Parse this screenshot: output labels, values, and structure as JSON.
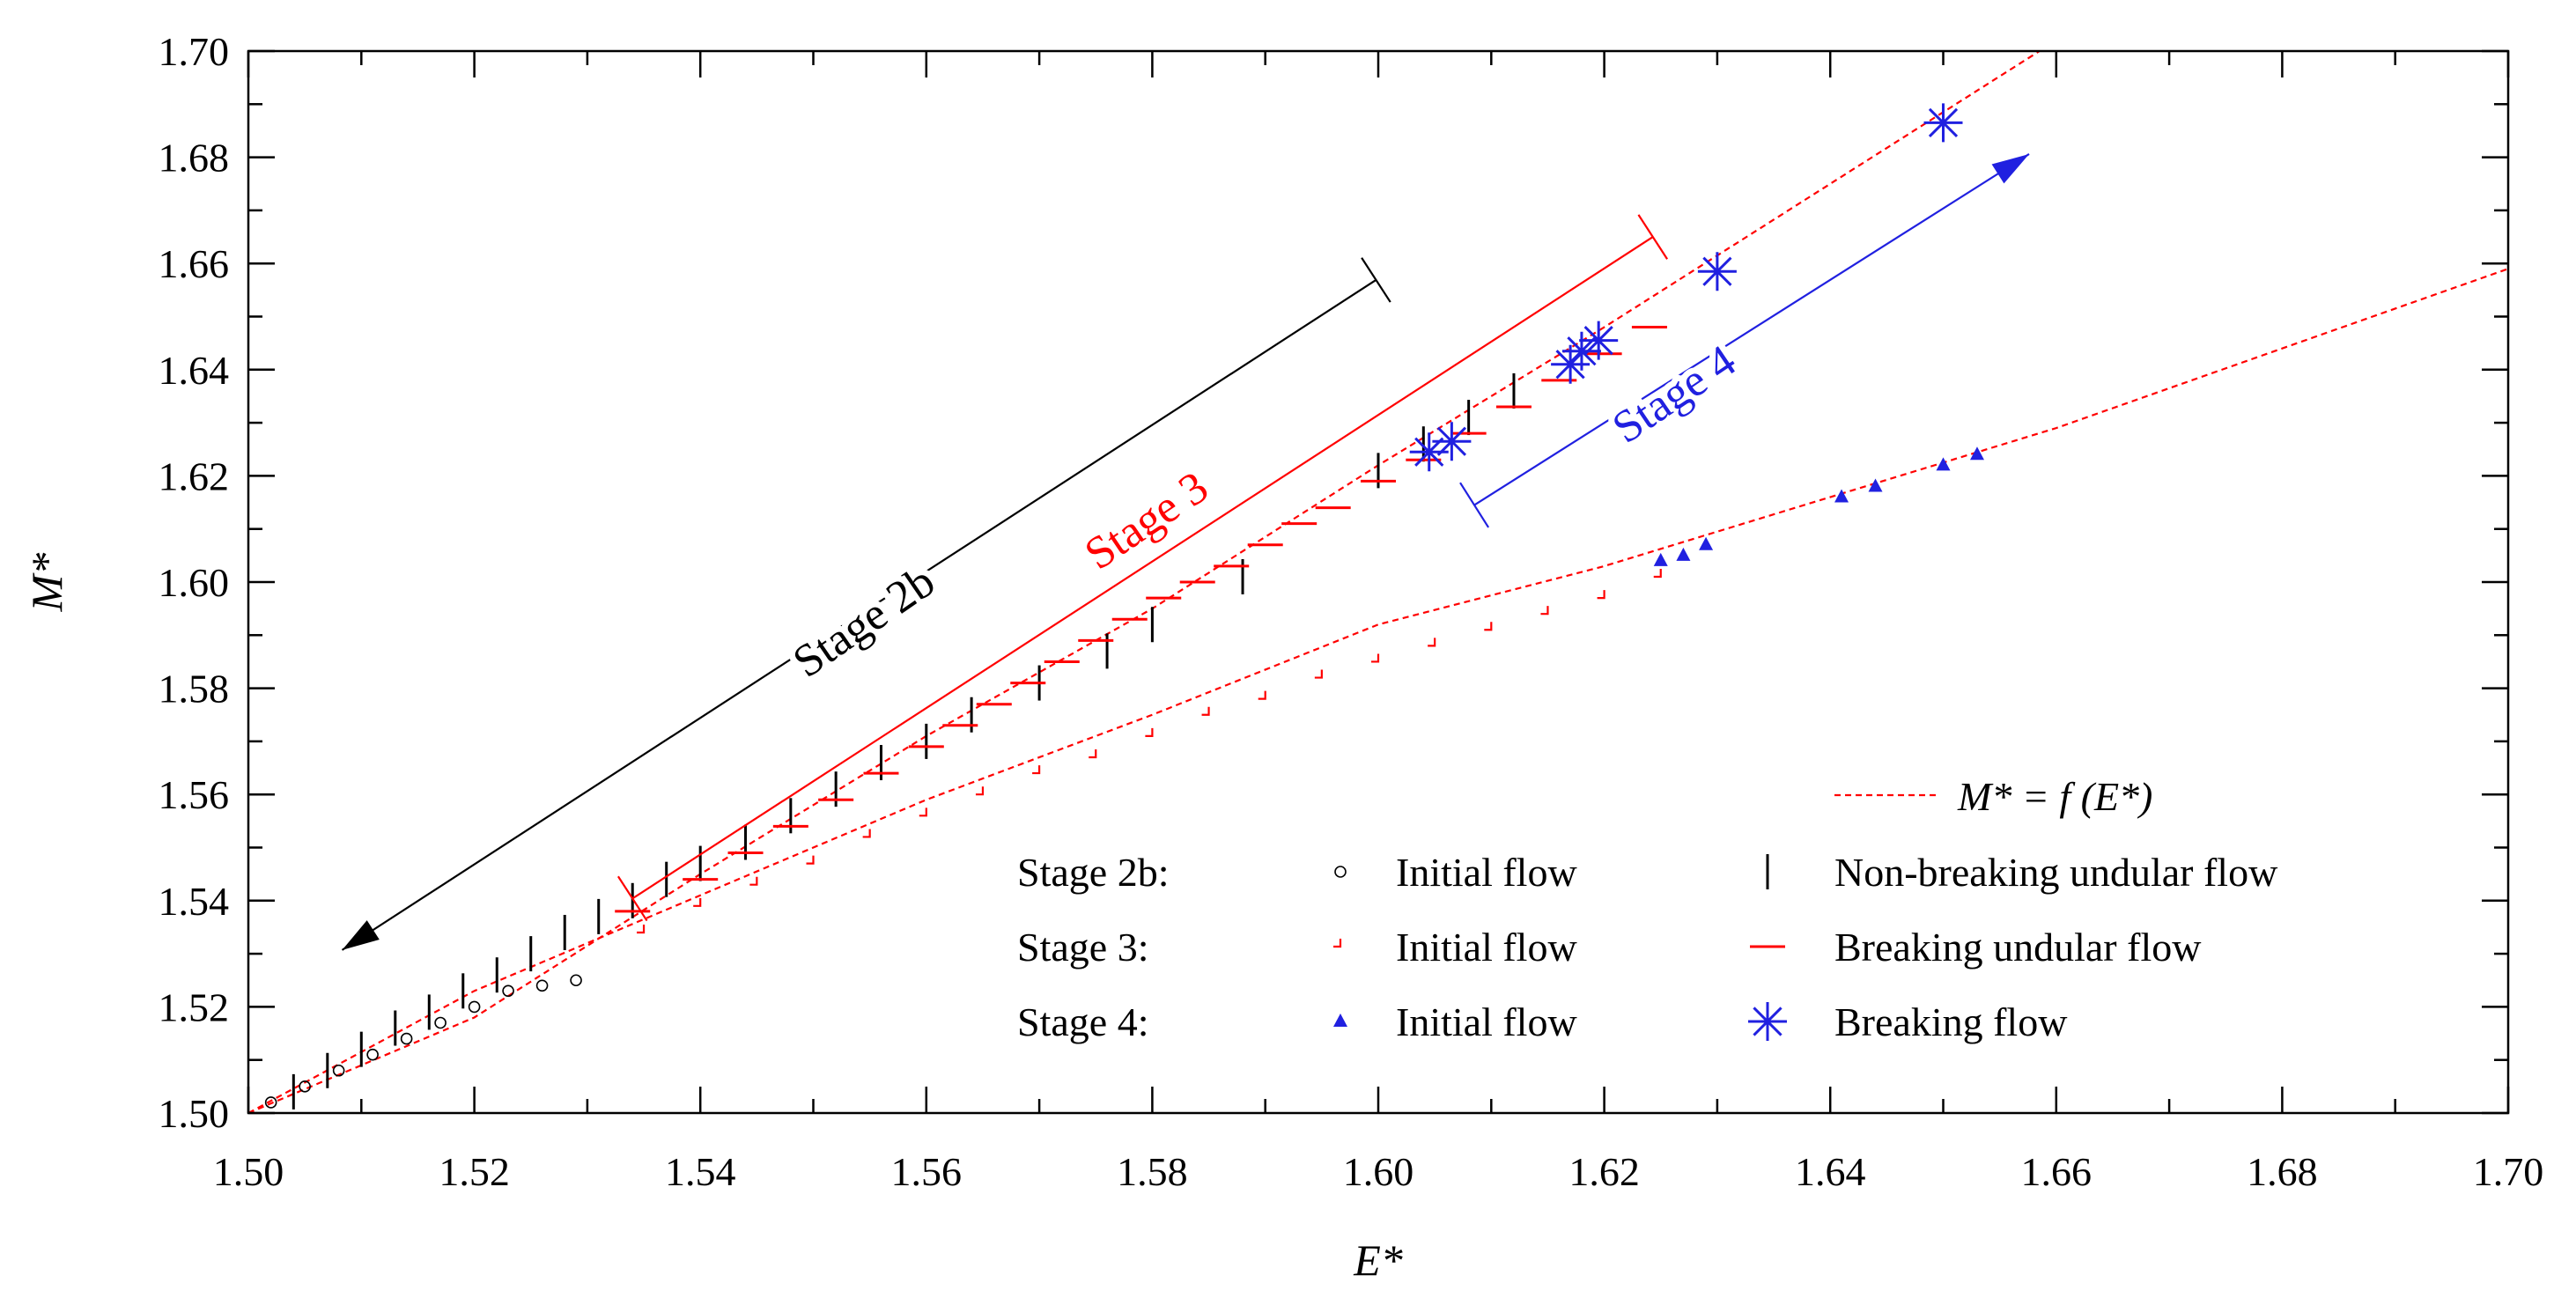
{
  "chart_data": {
    "type": "scatter",
    "xlabel": "E*",
    "ylabel": "M*",
    "xlim": [
      1.5,
      1.7
    ],
    "ylim": [
      1.5,
      1.7
    ],
    "xticks": [
      "1.50",
      "1.52",
      "1.54",
      "1.56",
      "1.58",
      "1.60",
      "1.62",
      "1.64",
      "1.66",
      "1.68",
      "1.70"
    ],
    "yticks": [
      "1.50",
      "1.52",
      "1.54",
      "1.56",
      "1.58",
      "1.60",
      "1.62",
      "1.64",
      "1.66",
      "1.68",
      "1.70"
    ],
    "colors": {
      "black": "#000000",
      "red": "#ff0000",
      "blue": "#2020e0"
    },
    "curves": [
      {
        "name": "M* = f (E*) upper branch",
        "color": "#ff0000",
        "x": [
          1.5,
          1.52,
          1.54,
          1.56,
          1.58,
          1.6,
          1.62,
          1.64,
          1.66
        ],
        "y": [
          1.5,
          1.518,
          1.545,
          1.571,
          1.595,
          1.622,
          1.648,
          1.675,
          1.702
        ]
      },
      {
        "name": "M* = f (E*) lower branch",
        "color": "#ff0000",
        "x": [
          1.5,
          1.52,
          1.54,
          1.56,
          1.58,
          1.6,
          1.62,
          1.64,
          1.66,
          1.68,
          1.7
        ],
        "y": [
          1.5,
          1.523,
          1.541,
          1.559,
          1.575,
          1.592,
          1.603,
          1.616,
          1.629,
          1.644,
          1.659
        ]
      }
    ],
    "series": [
      {
        "name": "Stage 2b: Initial flow",
        "marker": "circle",
        "color": "#000000",
        "x": [
          1.502,
          1.505,
          1.508,
          1.511,
          1.514,
          1.517,
          1.52,
          1.523,
          1.526,
          1.529
        ],
        "y": [
          1.502,
          1.505,
          1.508,
          1.511,
          1.514,
          1.517,
          1.52,
          1.523,
          1.524,
          1.525
        ]
      },
      {
        "name": "Stage 2b: Non-breaking undular flow",
        "marker": "vbar",
        "color": "#000000",
        "x": [
          1.504,
          1.507,
          1.51,
          1.513,
          1.516,
          1.519,
          1.522,
          1.525,
          1.528,
          1.531,
          1.534,
          1.537,
          1.54,
          1.544,
          1.548,
          1.552,
          1.556,
          1.56,
          1.564,
          1.57,
          1.576,
          1.58,
          1.588,
          1.6,
          1.604,
          1.608,
          1.612
        ],
        "y": [
          1.504,
          1.508,
          1.512,
          1.516,
          1.519,
          1.523,
          1.526,
          1.53,
          1.534,
          1.537,
          1.54,
          1.544,
          1.547,
          1.551,
          1.556,
          1.561,
          1.566,
          1.57,
          1.575,
          1.581,
          1.587,
          1.592,
          1.601,
          1.621,
          1.626,
          1.631,
          1.636
        ]
      },
      {
        "name": "Stage 3: Initial flow",
        "marker": "corner",
        "color": "#ff0000",
        "x": [
          1.535,
          1.54,
          1.545,
          1.55,
          1.555,
          1.56,
          1.565,
          1.57,
          1.575,
          1.58,
          1.585,
          1.59,
          1.595,
          1.6,
          1.605,
          1.61,
          1.615,
          1.62,
          1.625
        ],
        "y": [
          1.534,
          1.539,
          1.543,
          1.547,
          1.552,
          1.556,
          1.56,
          1.564,
          1.567,
          1.571,
          1.575,
          1.578,
          1.582,
          1.585,
          1.588,
          1.591,
          1.594,
          1.597,
          1.601
        ]
      },
      {
        "name": "Stage 3: Breaking undular flow",
        "marker": "hbar",
        "color": "#ff0000",
        "x": [
          1.534,
          1.54,
          1.544,
          1.548,
          1.552,
          1.556,
          1.56,
          1.563,
          1.566,
          1.569,
          1.572,
          1.575,
          1.578,
          1.581,
          1.584,
          1.587,
          1.59,
          1.593,
          1.596,
          1.6,
          1.604,
          1.608,
          1.612,
          1.616,
          1.62,
          1.624
        ],
        "y": [
          1.538,
          1.544,
          1.549,
          1.554,
          1.559,
          1.564,
          1.569,
          1.573,
          1.577,
          1.581,
          1.585,
          1.589,
          1.593,
          1.597,
          1.6,
          1.603,
          1.607,
          1.611,
          1.614,
          1.619,
          1.623,
          1.628,
          1.633,
          1.638,
          1.643,
          1.648
        ]
      },
      {
        "name": "Stage 4: Initial flow",
        "marker": "triangle",
        "color": "#2020e0",
        "x": [
          1.625,
          1.627,
          1.629,
          1.641,
          1.644,
          1.65,
          1.653
        ],
        "y": [
          1.604,
          1.605,
          1.607,
          1.616,
          1.618,
          1.622,
          1.624
        ]
      },
      {
        "name": "Stage 4: Breaking flow",
        "marker": "asterisk",
        "color": "#2020e0",
        "x": [
          1.6045,
          1.6065,
          1.617,
          1.618,
          1.6195,
          1.63,
          1.65
        ],
        "y": [
          1.6245,
          1.6265,
          1.641,
          1.6435,
          1.6455,
          1.6585,
          1.6865
        ]
      }
    ],
    "annotations": [
      {
        "text": "Stage 2b",
        "color": "#000000",
        "start": [
          1.5083,
          1.5307
        ],
        "end": [
          1.5998,
          1.6569
        ],
        "position": [
          1.5545,
          1.5925
        ],
        "angle": -34.5,
        "bar_end": "end",
        "arrow_end": "start"
      },
      {
        "text": "Stage 3",
        "color": "#ff0000",
        "start": [
          1.534,
          1.5404
        ],
        "end": [
          1.6243,
          1.665
        ],
        "position": [
          1.5795,
          1.6115
        ],
        "angle": -34,
        "bar_end": "both",
        "arrow_end": "none"
      },
      {
        "text": "Stage 4",
        "color": "#2020e0",
        "start": [
          1.6085,
          1.6145
        ],
        "end": [
          1.6576,
          1.6806
        ],
        "position": [
          1.6262,
          1.6353
        ],
        "angle": -34,
        "bar_end": "start",
        "arrow_end": "end"
      }
    ],
    "legend": {
      "position": "bottom-right",
      "curve_label": "M* = f (E*)",
      "rows": [
        {
          "stage": "Stage 2b:",
          "initial_label": "Initial flow",
          "other_label": "Non-breaking undular flow"
        },
        {
          "stage": "Stage 3:",
          "initial_label": "Initial flow",
          "other_label": "Breaking undular flow"
        },
        {
          "stage": "Stage 4:",
          "initial_label": "Initial flow",
          "other_label": "Breaking flow"
        }
      ]
    }
  }
}
